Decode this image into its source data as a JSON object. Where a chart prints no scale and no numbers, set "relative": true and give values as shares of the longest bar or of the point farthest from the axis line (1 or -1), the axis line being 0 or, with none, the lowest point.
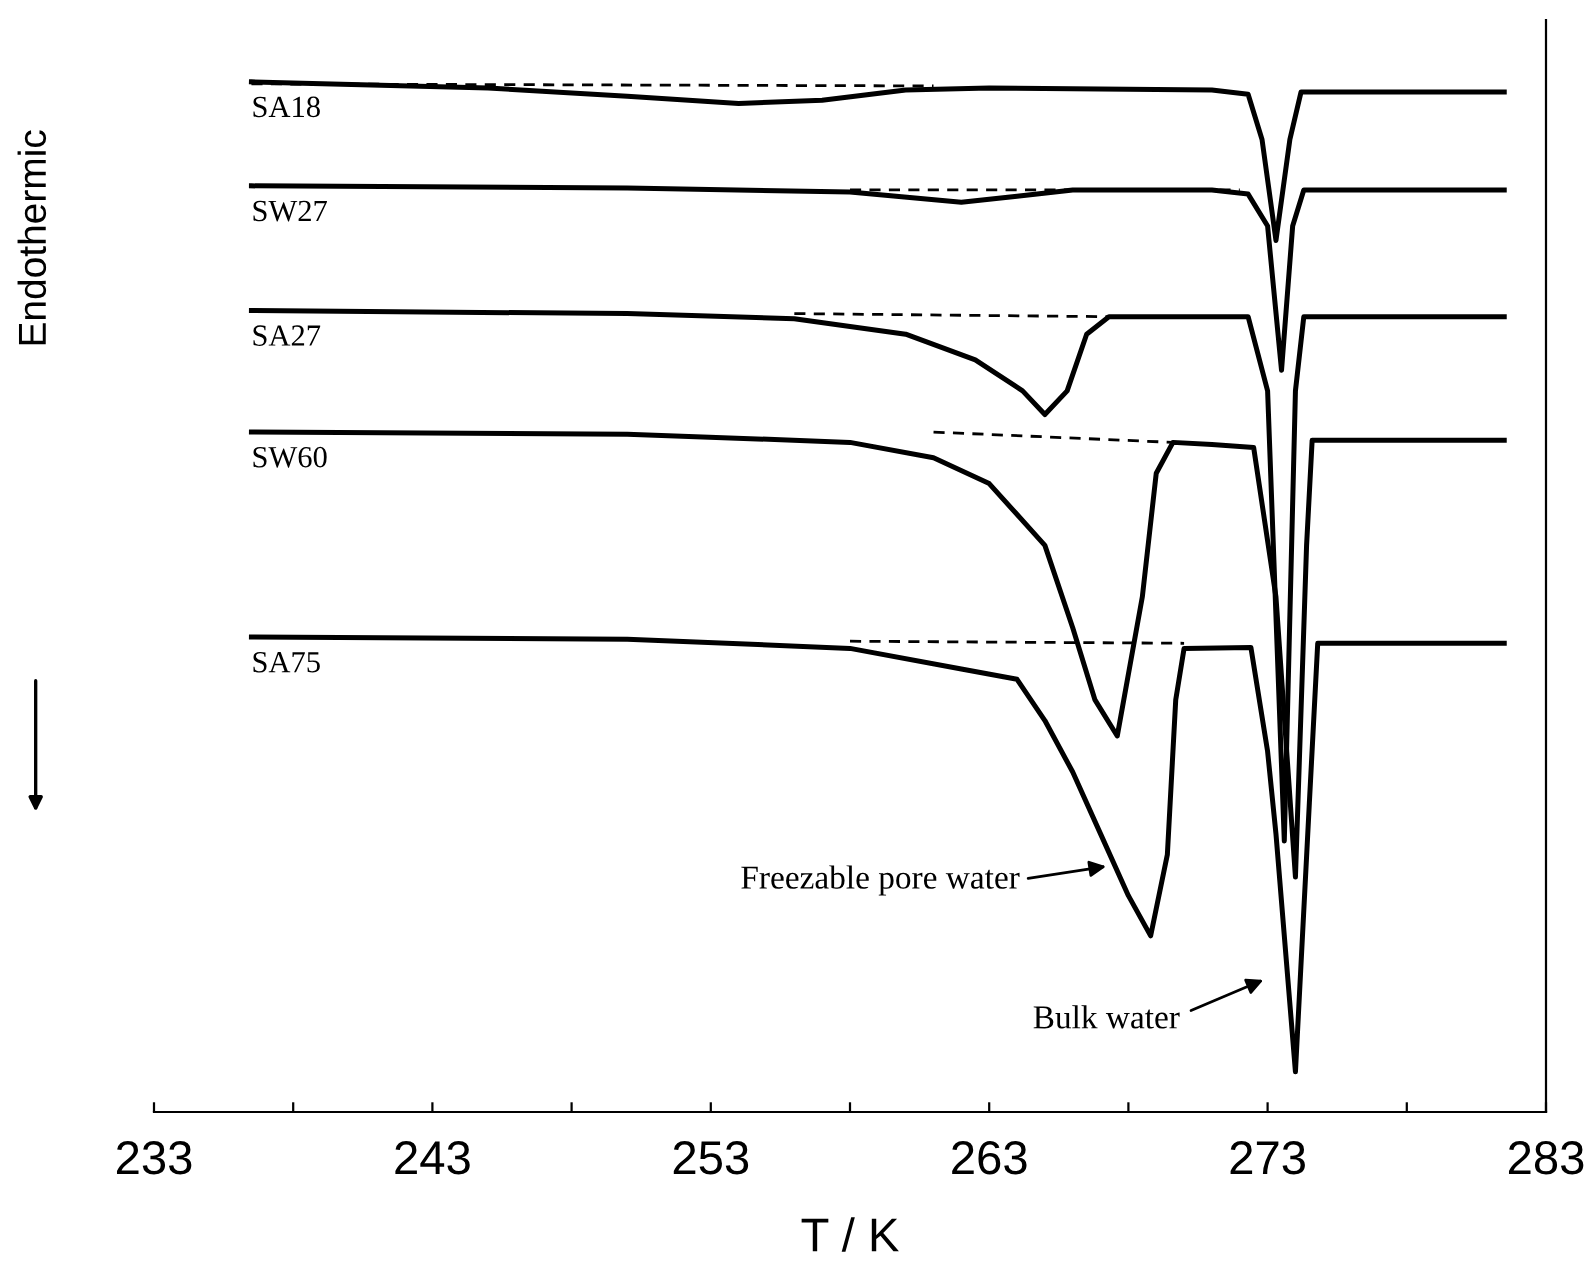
{
  "chart_data": {
    "type": "line",
    "relative": true,
    "xlabel": "T / K",
    "ylabel": "Endothermic",
    "tick_labels": "x",
    "grid": false,
    "legend": false,
    "xlim": [
      233,
      283
    ],
    "xticks": [
      233,
      {
        "value": 238,
        "label": null
      },
      243,
      {
        "value": 248,
        "label": null
      },
      253,
      {
        "value": 258,
        "label": null
      },
      263,
      {
        "value": 268,
        "label": null
      },
      273,
      {
        "value": 278,
        "label": null
      },
      283
    ],
    "series": [
      {
        "name": "SA18",
        "color": "#000000",
        "x": [
          236.5,
          245,
          250,
          254,
          257,
          260,
          263,
          271,
          272.3,
          272.8,
          273.3,
          273.8,
          274.2,
          276,
          281.5
        ],
        "values": [
          1.0,
          0.994,
          0.986,
          0.979,
          0.982,
          0.992,
          0.994,
          0.992,
          0.988,
          0.944,
          0.846,
          0.944,
          0.99,
          0.99,
          0.99
        ]
      },
      {
        "name": "SW27",
        "color": "#000000",
        "x": [
          236.5,
          250,
          258,
          262,
          264,
          266,
          271,
          272.3,
          273,
          273.5,
          273.9,
          274.3,
          281.5
        ],
        "values": [
          0.899,
          0.897,
          0.893,
          0.883,
          0.889,
          0.895,
          0.895,
          0.891,
          0.86,
          0.72,
          0.86,
          0.895,
          0.895
        ]
      },
      {
        "name": "SA27",
        "color": "#000000",
        "x": [
          236.5,
          250,
          256,
          260,
          262.5,
          264.2,
          265,
          265.8,
          266.5,
          267.3,
          272.3,
          273,
          273.6,
          274,
          274.3,
          281.5
        ],
        "values": [
          0.778,
          0.775,
          0.77,
          0.755,
          0.73,
          0.7,
          0.677,
          0.7,
          0.755,
          0.772,
          0.772,
          0.7,
          0.263,
          0.7,
          0.772,
          0.772
        ]
      },
      {
        "name": "SW60",
        "color": "#000000",
        "x": [
          236.5,
          250,
          258,
          261,
          263,
          265,
          266,
          266.8,
          267.6,
          268.5,
          269,
          269.6,
          271,
          272.5,
          273.3,
          274,
          274.4,
          274.6,
          281.5
        ],
        "values": [
          0.66,
          0.658,
          0.65,
          0.635,
          0.61,
          0.55,
          0.47,
          0.4,
          0.365,
          0.5,
          0.62,
          0.65,
          0.648,
          0.645,
          0.5,
          0.228,
          0.55,
          0.652,
          0.652
        ]
      },
      {
        "name": "SA75",
        "color": "#000000",
        "x": [
          236.5,
          250,
          258,
          262,
          264,
          265,
          266,
          267,
          268,
          268.8,
          269.4,
          269.7,
          270,
          272.4,
          273,
          273.3,
          274,
          274.5,
          274.8,
          281.5
        ],
        "values": [
          0.461,
          0.459,
          0.45,
          0.43,
          0.42,
          0.38,
          0.33,
          0.27,
          0.21,
          0.171,
          0.25,
          0.4,
          0.45,
          0.451,
          0.35,
          0.27,
          0.039,
          0.3,
          0.455,
          0.455
        ]
      },
      {
        "color": "#000000",
        "line_style": "dashed",
        "x": [
          236.5,
          261
        ],
        "values": [
          0.998,
          0.996
        ]
      },
      {
        "color": "#000000",
        "line_style": "dashed",
        "x": [
          258,
          272
        ],
        "values": [
          0.895,
          0.895
        ]
      },
      {
        "color": "#000000",
        "line_style": "dashed",
        "x": [
          256,
          267.3
        ],
        "values": [
          0.775,
          0.772
        ]
      },
      {
        "color": "#000000",
        "line_style": "dashed",
        "x": [
          261,
          269.6
        ],
        "values": [
          0.66,
          0.65
        ]
      },
      {
        "color": "#000000",
        "line_style": "dashed",
        "x": [
          258,
          270
        ],
        "values": [
          0.457,
          0.455
        ]
      }
    ],
    "annotations": [
      "Freezable pore water",
      "Bulk water"
    ]
  }
}
